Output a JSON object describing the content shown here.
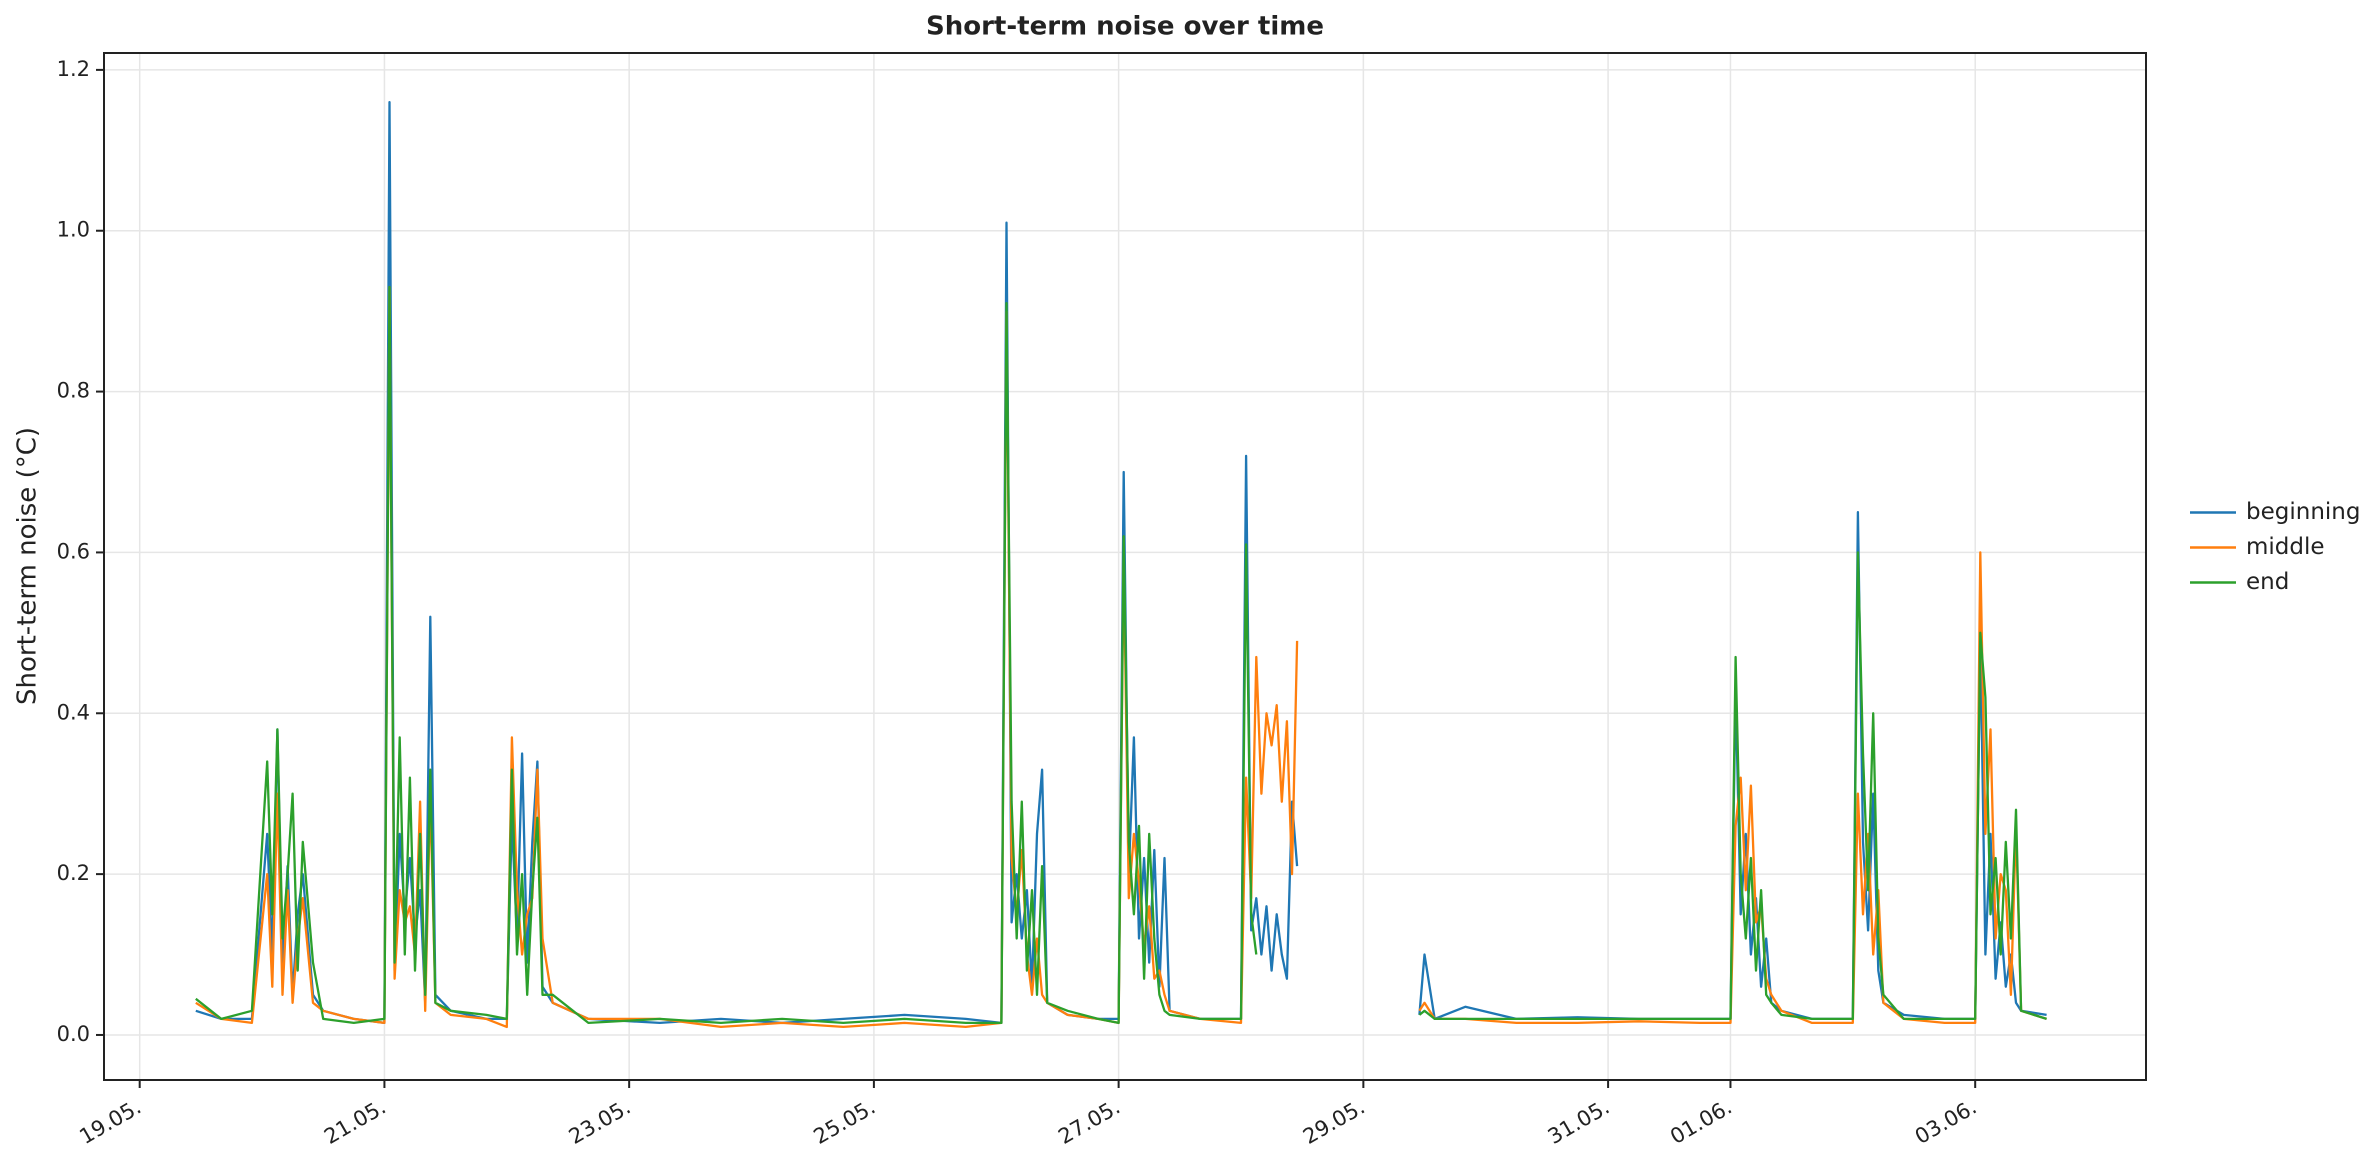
{
  "chart_data": {
    "type": "line",
    "title": "Short-term noise over time",
    "y_label": "Short-term noise (°C)",
    "x": [
      "05-19 11:00",
      "05-19 16:00",
      "05-19 22:00",
      "05-20 01:00",
      "05-20 02:00",
      "05-20 03:00",
      "05-20 04:00",
      "05-20 05:00",
      "05-20 06:00",
      "05-20 07:00",
      "05-20 08:00",
      "05-20 10:00",
      "05-20 12:00",
      "05-20 18:00",
      "05-21 00:00",
      "05-21 01:00",
      "05-21 02:00",
      "05-21 03:00",
      "05-21 04:00",
      "05-21 05:00",
      "05-21 06:00",
      "05-21 07:00",
      "05-21 08:00",
      "05-21 09:00",
      "05-21 10:00",
      "05-21 13:00",
      "05-21 20:00",
      "05-22 00:00",
      "05-22 01:00",
      "05-22 02:00",
      "05-22 03:00",
      "05-22 04:00",
      "05-22 05:00",
      "05-22 06:00",
      "05-22 07:00",
      "05-22 09:00",
      "05-22 16:00",
      "05-23 06:00",
      "05-23 18:00",
      "05-24 06:00",
      "05-24 18:00",
      "05-25 06:00",
      "05-25 18:00",
      "05-26 01:00",
      "05-26 02:00",
      "05-26 03:00",
      "05-26 04:00",
      "05-26 05:00",
      "05-26 06:00",
      "05-26 07:00",
      "05-26 08:00",
      "05-26 09:00",
      "05-26 10:00",
      "05-26 14:00",
      "05-26 20:00",
      "05-27 00:00",
      "05-27 01:00",
      "05-27 02:00",
      "05-27 03:00",
      "05-27 04:00",
      "05-27 05:00",
      "05-27 06:00",
      "05-27 07:00",
      "05-27 08:00",
      "05-27 09:00",
      "05-27 10:00",
      "05-27 16:00",
      "05-28 00:00",
      "05-28 01:00",
      "05-28 02:00",
      "05-28 03:00",
      "05-28 04:00",
      "05-28 05:00",
      "05-28 06:00",
      "05-28 07:00",
      "05-28 08:00",
      "05-28 09:00",
      "05-28 10:00",
      "05-28 11:00",
      "05-28 18:00",
      "05-29 11:00",
      "05-29 12:00",
      "05-29 14:00",
      "05-29 20:00",
      "05-30 06:00",
      "05-30 18:00",
      "05-31 06:00",
      "05-31 18:00",
      "06-01 00:00",
      "06-01 01:00",
      "06-01 02:00",
      "06-01 03:00",
      "06-01 04:00",
      "06-01 05:00",
      "06-01 06:00",
      "06-01 07:00",
      "06-01 08:00",
      "06-01 10:00",
      "06-01 16:00",
      "06-02 00:00",
      "06-02 01:00",
      "06-02 02:00",
      "06-02 03:00",
      "06-02 04:00",
      "06-02 05:00",
      "06-02 06:00",
      "06-02 10:00",
      "06-02 18:00",
      "06-03 00:00",
      "06-03 01:00",
      "06-03 02:00",
      "06-03 03:00",
      "06-03 04:00",
      "06-03 05:00",
      "06-03 06:00",
      "06-03 07:00",
      "06-03 08:00",
      "06-03 09:00",
      "06-03 14:00"
    ],
    "series": [
      {
        "name": "beginning",
        "color": "#1f77b4",
        "values": [
          0.03,
          0.02,
          0.02,
          0.25,
          0.1,
          0.38,
          0.08,
          0.21,
          0.05,
          0.15,
          0.2,
          0.05,
          0.03,
          0.02,
          0.015,
          1.16,
          0.08,
          0.25,
          0.15,
          0.22,
          0.12,
          0.18,
          0.04,
          0.52,
          0.05,
          0.03,
          0.02,
          0.02,
          0.27,
          0.12,
          0.35,
          0.09,
          0.24,
          0.34,
          0.06,
          0.04,
          0.02,
          0.015,
          0.02,
          0.015,
          0.02,
          0.025,
          0.02,
          0.015,
          1.01,
          0.14,
          0.2,
          0.12,
          0.18,
          0.06,
          0.25,
          0.33,
          0.04,
          0.025,
          0.02,
          0.02,
          0.7,
          0.2,
          0.37,
          0.12,
          0.22,
          0.09,
          0.23,
          0.06,
          0.22,
          0.03,
          0.02,
          0.02,
          0.72,
          0.13,
          0.17,
          0.1,
          0.16,
          0.08,
          0.15,
          0.1,
          0.07,
          0.29,
          0.21,
          null,
          0.025,
          0.1,
          0.02,
          0.035,
          0.02,
          0.022,
          0.02,
          0.02,
          0.02,
          0.43,
          0.15,
          0.25,
          0.1,
          0.17,
          0.06,
          0.12,
          0.04,
          0.03,
          0.02,
          0.02,
          0.65,
          0.24,
          0.13,
          0.3,
          0.08,
          0.04,
          0.025,
          0.02,
          0.02,
          0.5,
          0.1,
          0.25,
          0.07,
          0.14,
          0.06,
          0.1,
          0.04,
          0.03,
          0.025
        ]
      },
      {
        "name": "middle",
        "color": "#ff7f0e",
        "values": [
          0.04,
          0.02,
          0.015,
          0.2,
          0.06,
          0.3,
          0.05,
          0.18,
          0.04,
          0.12,
          0.17,
          0.04,
          0.03,
          0.02,
          0.015,
          0.93,
          0.07,
          0.18,
          0.14,
          0.16,
          0.1,
          0.29,
          0.03,
          0.3,
          0.04,
          0.025,
          0.02,
          0.01,
          0.37,
          0.18,
          0.1,
          0.15,
          0.17,
          0.33,
          0.12,
          0.04,
          0.02,
          0.02,
          0.01,
          0.015,
          0.01,
          0.015,
          0.01,
          0.015,
          0.9,
          0.22,
          0.15,
          0.23,
          0.1,
          0.05,
          0.12,
          0.05,
          0.04,
          0.025,
          0.02,
          0.015,
          0.6,
          0.17,
          0.25,
          0.19,
          0.11,
          0.16,
          0.07,
          0.08,
          0.05,
          0.03,
          0.02,
          0.015,
          0.32,
          0.17,
          0.47,
          0.3,
          0.4,
          0.36,
          0.41,
          0.29,
          0.39,
          0.2,
          0.49,
          null,
          0.03,
          0.04,
          0.02,
          0.02,
          0.015,
          0.015,
          0.017,
          0.015,
          0.015,
          0.26,
          0.32,
          0.18,
          0.31,
          0.14,
          0.16,
          0.07,
          0.05,
          0.03,
          0.015,
          0.015,
          0.3,
          0.15,
          0.25,
          0.1,
          0.18,
          0.04,
          0.02,
          0.015,
          0.015,
          0.6,
          0.25,
          0.38,
          0.12,
          0.2,
          0.18,
          0.05,
          0.26,
          0.03,
          0.02
        ]
      },
      {
        "name": "end",
        "color": "#2ca02c",
        "values": [
          0.045,
          0.02,
          0.03,
          0.34,
          0.15,
          0.38,
          0.12,
          0.2,
          0.3,
          0.08,
          0.24,
          0.09,
          0.02,
          0.015,
          0.02,
          0.93,
          0.09,
          0.37,
          0.1,
          0.32,
          0.08,
          0.25,
          0.05,
          0.33,
          0.04,
          0.03,
          0.025,
          0.02,
          0.33,
          0.1,
          0.2,
          0.05,
          0.18,
          0.27,
          0.05,
          0.05,
          0.015,
          0.02,
          0.015,
          0.02,
          0.015,
          0.02,
          0.015,
          0.015,
          0.91,
          0.29,
          0.12,
          0.29,
          0.08,
          0.18,
          0.05,
          0.21,
          0.04,
          0.03,
          0.02,
          0.015,
          0.62,
          0.24,
          0.15,
          0.26,
          0.07,
          0.25,
          0.12,
          0.05,
          0.03,
          0.025,
          0.02,
          0.02,
          0.61,
          0.15,
          0.1,
          null,
          null,
          null,
          null,
          null,
          null,
          null,
          null,
          null,
          0.025,
          0.03,
          0.02,
          0.02,
          0.02,
          0.02,
          0.02,
          0.02,
          0.02,
          0.47,
          0.2,
          0.12,
          0.22,
          0.08,
          0.18,
          0.05,
          0.04,
          0.025,
          0.02,
          0.02,
          0.6,
          0.35,
          0.18,
          0.4,
          0.12,
          0.05,
          0.02,
          0.02,
          0.02,
          0.5,
          0.42,
          0.15,
          0.22,
          0.1,
          0.24,
          0.12,
          0.28,
          0.03,
          0.02
        ]
      }
    ],
    "xlim": [
      "05-18 17:00",
      "06-04 09:30"
    ],
    "xticks": [
      {
        "value": "05-19 00:00",
        "label": "19.05."
      },
      {
        "value": "05-21 00:00",
        "label": "21.05."
      },
      {
        "value": "05-23 00:00",
        "label": "23.05."
      },
      {
        "value": "05-25 00:00",
        "label": "25.05."
      },
      {
        "value": "05-27 00:00",
        "label": "27.05."
      },
      {
        "value": "05-29 00:00",
        "label": "29.05."
      },
      {
        "value": "05-31 00:00",
        "label": "31.05."
      },
      {
        "value": "06-01 00:00",
        "label": "01.06."
      },
      {
        "value": "06-03 00:00",
        "label": "03.06."
      }
    ],
    "ylim": [
      -0.056,
      1.221
    ],
    "yticks": [
      {
        "value": 0,
        "label": "0.0"
      },
      0.2,
      0.4,
      0.6,
      0.8,
      {
        "value": 1,
        "label": "1.0"
      },
      1.2
    ],
    "grid": true,
    "legend": "right"
  }
}
